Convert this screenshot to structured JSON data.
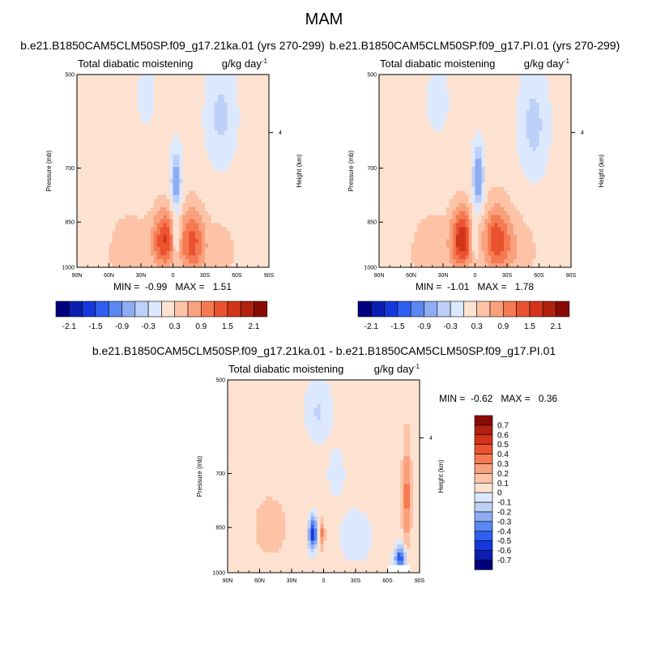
{
  "figure": {
    "title": "MAM",
    "diff_title": "b.e21.B1850CAM5CLM50SP.f09_g17.21ka.01 - b.e21.B1850CAM5CLM50SP.f09_g17.PI.01"
  },
  "panels": [
    {
      "run_title": "b.e21.B1850CAM5CLM50SP.f09_g17.21ka.01 (yrs 270-299)",
      "left_title": "Total diabatic moistening",
      "units": "g/kg day",
      "units_sup": "-1",
      "stats": "MIN =  -0.99   MAX =   1.51"
    },
    {
      "run_title": "b.e21.B1850CAM5CLM50SP.f09_g17.PI.01 (yrs 270-299)",
      "left_title": "Total diabatic moistening",
      "units": "g/kg day",
      "units_sup": "-1",
      "stats": "MIN =  -1.01   MAX =   1.78"
    },
    {
      "left_title": "Total diabatic moistening",
      "units": "g/kg day",
      "units_sup": "-1",
      "stats": "MIN =  -0.62   MAX =   0.36"
    }
  ],
  "chart_data": [
    {
      "type": "heatmap",
      "title": "b.e21.B1850CAM5CLM50SP.f09_g17.21ka.01 (yrs 270-299)",
      "xlabel": "",
      "ylabel": "Pressure (mb)",
      "y2label": "Height (km)",
      "x_ticks": [
        "90N",
        "60N",
        "30N",
        "0",
        "30S",
        "60S",
        "90S"
      ],
      "x_range": [
        90,
        -90
      ],
      "y_ticks": [
        "500",
        "700",
        "850",
        "1000"
      ],
      "y2_ticks": [
        "4"
      ],
      "y_range": [
        500,
        1000
      ],
      "y_scale": "log",
      "min": -0.99,
      "max": 1.51,
      "colorbar_labels": [
        "-2.1",
        "-1.5",
        "-0.9",
        "-0.3",
        "0.3",
        "0.9",
        "1.5",
        "2.1"
      ],
      "colors": [
        "#00007f",
        "#0a1fb0",
        "#1438dc",
        "#2f5ff0",
        "#5b87f0",
        "#8eacf2",
        "#bdd0f7",
        "#dce8fd",
        "#fde2d2",
        "#fcc3a6",
        "#f9a07c",
        "#f57a52",
        "#ea5330",
        "#d2341a",
        "#b0210f",
        "#8a0b05"
      ]
    },
    {
      "type": "heatmap",
      "title": "b.e21.B1850CAM5CLM50SP.f09_g17.PI.01 (yrs 270-299)",
      "xlabel": "",
      "ylabel": "Pressure (mb)",
      "y2label": "Height (km)",
      "x_ticks": [
        "90N",
        "60N",
        "30N",
        "0",
        "30S",
        "60S",
        "90S"
      ],
      "x_range": [
        90,
        -90
      ],
      "y_ticks": [
        "500",
        "700",
        "850",
        "1000"
      ],
      "y2_ticks": [
        "4"
      ],
      "y_range": [
        500,
        1000
      ],
      "y_scale": "log",
      "min": -1.01,
      "max": 1.78,
      "colorbar_labels": [
        "-2.1",
        "-1.5",
        "-0.9",
        "-0.3",
        "0.3",
        "0.9",
        "1.5",
        "2.1"
      ],
      "colors": [
        "#00007f",
        "#0a1fb0",
        "#1438dc",
        "#2f5ff0",
        "#5b87f0",
        "#8eacf2",
        "#bdd0f7",
        "#dce8fd",
        "#fde2d2",
        "#fcc3a6",
        "#f9a07c",
        "#f57a52",
        "#ea5330",
        "#d2341a",
        "#b0210f",
        "#8a0b05"
      ]
    },
    {
      "type": "heatmap",
      "title": "b.e21.B1850CAM5CLM50SP.f09_g17.21ka.01 - b.e21.B1850CAM5CLM50SP.f09_g17.PI.01",
      "xlabel": "",
      "ylabel": "Pressure (mb)",
      "y2label": "Height (km)",
      "x_ticks": [
        "90N",
        "60N",
        "30N",
        "0",
        "30S",
        "60S",
        "90S"
      ],
      "x_range": [
        90,
        -90
      ],
      "y_ticks": [
        "500",
        "700",
        "850",
        "1000"
      ],
      "y2_ticks": [
        "4"
      ],
      "y_range": [
        500,
        1000
      ],
      "y_scale": "log",
      "min": -0.62,
      "max": 0.36,
      "colorbar_labels": [
        "0.7",
        "0.6",
        "0.5",
        "0.4",
        "0.3",
        "0.2",
        "0.1",
        "0",
        "-0.1",
        "-0.2",
        "-0.3",
        "-0.4",
        "-0.5",
        "-0.6",
        "-0.7"
      ],
      "colors": [
        "#8a0b05",
        "#b0210f",
        "#d2341a",
        "#ea5330",
        "#f57a52",
        "#f9a07c",
        "#fcc3a6",
        "#fde2d2",
        "#dce8fd",
        "#bdd0f7",
        "#8eacf2",
        "#5b87f0",
        "#2f5ff0",
        "#1438dc",
        "#0a1fb0",
        "#00007f"
      ]
    }
  ]
}
